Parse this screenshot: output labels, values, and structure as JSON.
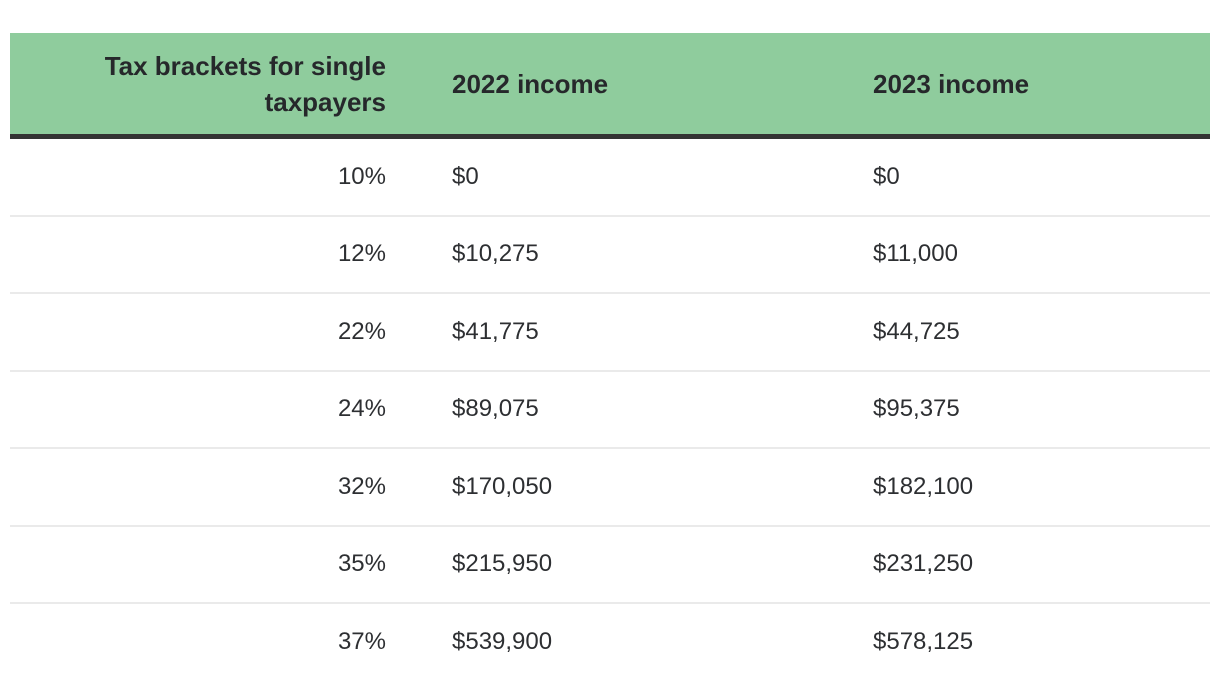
{
  "chart_data": {
    "type": "table",
    "title": "Tax brackets for single taxpayers",
    "columns": [
      "Tax brackets for single taxpayers",
      "2022 income",
      "2023 income"
    ],
    "rows": [
      [
        "10%",
        "$0",
        "$0"
      ],
      [
        "12%",
        "$10,275",
        "$11,000"
      ],
      [
        "22%",
        "$41,775",
        "$44,725"
      ],
      [
        "24%",
        "$89,075",
        "$95,375"
      ],
      [
        "32%",
        "$170,050",
        "$182,100"
      ],
      [
        "35%",
        "$215,950",
        "$231,250"
      ],
      [
        "37%",
        "$539,900",
        "$578,125"
      ]
    ],
    "layout": {
      "header_background": "#8FCC9D",
      "header_border_bottom": "#333333",
      "row_divider": "#EAEAEA",
      "col1_align": "right",
      "col2_align": "left",
      "col3_align": "left"
    }
  },
  "header": {
    "col1": "Tax brackets for single taxpayers",
    "col2": "2022 income",
    "col3": "2023 income"
  },
  "colors": {
    "header_bg": "#8FCC9D",
    "header_border": "#333333",
    "row_divider": "#EAEAEA",
    "header_text": "#26282B",
    "body_text": "#2D2F32"
  }
}
